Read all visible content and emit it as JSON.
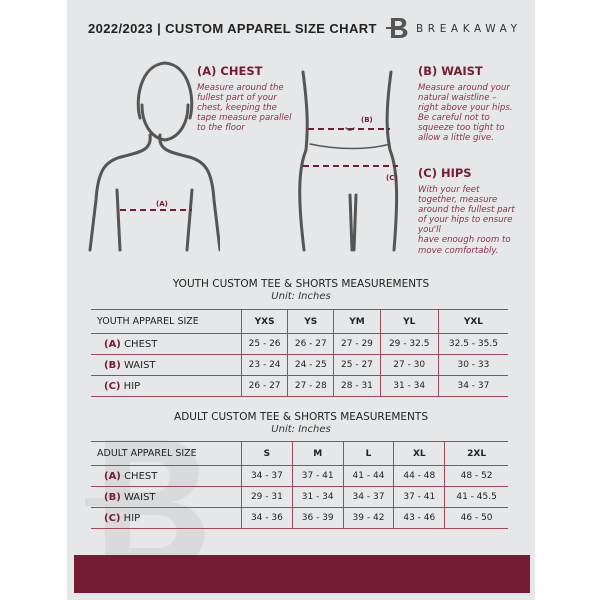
{
  "header": {
    "title": "2022/2023  |  CUSTOM APPAREL SIZE CHART",
    "brand": "BREAKAWAY",
    "logo_letter": "B"
  },
  "guide": {
    "chest": {
      "title": "(A) CHEST",
      "text": [
        "Measure around the",
        "fullest part of your",
        "chest, keeping the",
        "tape measure parallel",
        "to the floor"
      ],
      "tag": "(A)"
    },
    "waist": {
      "title": "(B) WAIST",
      "text": [
        "Measure around your",
        "natural waistline –",
        "right above your hips.",
        "Be careful not to",
        "squeeze too tight to",
        "allow a little give."
      ],
      "tag": "(B)"
    },
    "hips": {
      "title": "(C) HIPS",
      "text": [
        "With your feet",
        "together, measure",
        "around the fullest part",
        "of your hips to ensure",
        "you'll",
        "have enough room to",
        "move comfortably."
      ],
      "tag": "(C)"
    }
  },
  "youth": {
    "title": "YOUTH CUSTOM TEE & SHORTS MEASUREMENTS",
    "unit": "Unit: Inches",
    "header": [
      "YOUTH APPAREL SIZE",
      "YXS",
      "YS",
      "YM",
      "YL",
      "YXL"
    ],
    "rows": [
      {
        "code": "(A)",
        "name": "CHEST",
        "values": [
          "25 - 26",
          "26 - 27",
          "27 - 29",
          "29 - 32.5",
          "32.5 - 35.5"
        ]
      },
      {
        "code": "(B)",
        "name": "WAIST",
        "values": [
          "23 - 24",
          "24 - 25",
          "25 - 27",
          "27 - 30",
          "30 - 33"
        ]
      },
      {
        "code": "(C)",
        "name": "HIP",
        "values": [
          "26 - 27",
          "27 - 28",
          "28 - 31",
          "31 - 34",
          "34 - 37"
        ]
      }
    ]
  },
  "adult": {
    "title": "ADULT CUSTOM TEE & SHORTS MEASUREMENTS",
    "unit": "Unit: Inches",
    "header": [
      "ADULT APPAREL SIZE",
      "S",
      "M",
      "L",
      "XL",
      "2XL"
    ],
    "rows": [
      {
        "code": "(A)",
        "name": "CHEST",
        "values": [
          "34 - 37",
          "37 - 41",
          "41 - 44",
          "44 - 48",
          "48 - 52"
        ]
      },
      {
        "code": "(B)",
        "name": "WAIST",
        "values": [
          "29 - 31",
          "31 - 34",
          "34 - 37",
          "37 - 41",
          "41 - 45.5"
        ]
      },
      {
        "code": "(C)",
        "name": "HIP",
        "values": [
          "34 - 36",
          "36 - 39",
          "39 - 42",
          "43 - 46",
          "46 - 50"
        ]
      }
    ]
  },
  "colors": {
    "accent": "#731c33",
    "background": "#e6e7e8"
  }
}
